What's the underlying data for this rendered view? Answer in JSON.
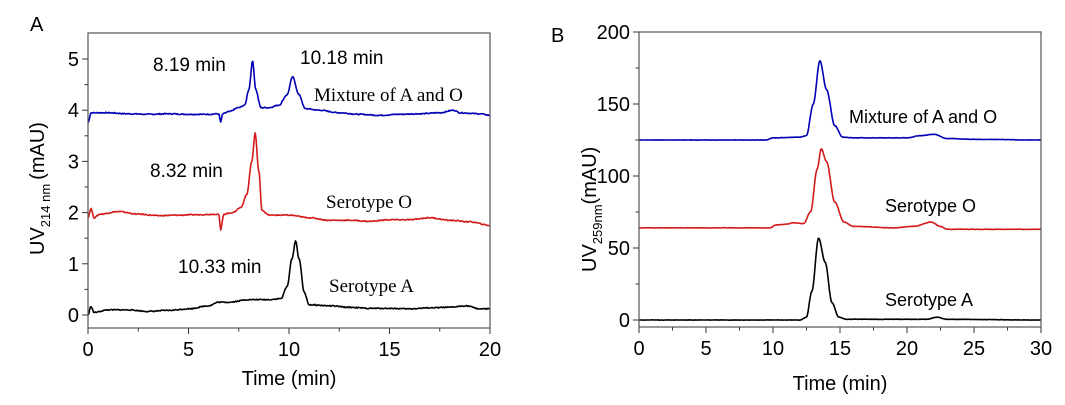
{
  "chart_data": [
    {
      "panel": "A",
      "type": "line",
      "title": "",
      "xlabel": "Time (min)",
      "ylabel_main": "UV",
      "ylabel_sub": "214 nm",
      "ylabel_unit": "(mAU)",
      "xlim": [
        0,
        20
      ],
      "ylim": [
        -0.25,
        5.5
      ],
      "xticks": [
        0,
        5,
        10,
        15,
        20
      ],
      "yticks": [
        0,
        1,
        2,
        3,
        4,
        5
      ],
      "grid": false,
      "series": [
        {
          "name": "Mixture of A and O",
          "color": "#0000b4",
          "baseline": 3.93,
          "points": [
            [
              0,
              3.75
            ],
            [
              0.15,
              3.95
            ],
            [
              1,
              3.95
            ],
            [
              2,
              3.93
            ],
            [
              3,
              3.92
            ],
            [
              4,
              3.93
            ],
            [
              5,
              3.92
            ],
            [
              6,
              3.92
            ],
            [
              6.5,
              3.93
            ],
            [
              6.6,
              3.77
            ],
            [
              6.7,
              3.93
            ],
            [
              7,
              3.97
            ],
            [
              7.5,
              4.05
            ],
            [
              7.8,
              4.1
            ],
            [
              8.0,
              4.4
            ],
            [
              8.19,
              4.96
            ],
            [
              8.35,
              4.4
            ],
            [
              8.6,
              4.05
            ],
            [
              9,
              4.05
            ],
            [
              9.5,
              4.1
            ],
            [
              9.9,
              4.3
            ],
            [
              10.18,
              4.65
            ],
            [
              10.5,
              4.3
            ],
            [
              10.8,
              4.03
            ],
            [
              11.5,
              4.0
            ],
            [
              12.5,
              3.95
            ],
            [
              13.5,
              3.92
            ],
            [
              14.5,
              3.9
            ],
            [
              15.5,
              3.92
            ],
            [
              16.5,
              3.93
            ],
            [
              17.5,
              3.95
            ],
            [
              18.2,
              4.0
            ],
            [
              18.5,
              3.95
            ],
            [
              19.5,
              3.93
            ],
            [
              20,
              3.9
            ]
          ]
        },
        {
          "name": "Serotype O",
          "color": "#d41a1a",
          "baseline": 1.95,
          "points": [
            [
              0,
              1.9
            ],
            [
              0.15,
              2.08
            ],
            [
              0.3,
              1.9
            ],
            [
              0.6,
              1.97
            ],
            [
              1.5,
              2.02
            ],
            [
              2.5,
              1.97
            ],
            [
              3.5,
              1.94
            ],
            [
              4.5,
              1.95
            ],
            [
              5.5,
              1.96
            ],
            [
              6.5,
              1.97
            ],
            [
              6.6,
              1.66
            ],
            [
              6.75,
              1.97
            ],
            [
              7.2,
              2.0
            ],
            [
              7.6,
              2.1
            ],
            [
              7.9,
              2.35
            ],
            [
              8.15,
              3.0
            ],
            [
              8.32,
              3.55
            ],
            [
              8.5,
              2.8
            ],
            [
              8.65,
              2.05
            ],
            [
              9,
              1.95
            ],
            [
              10,
              1.95
            ],
            [
              11,
              1.9
            ],
            [
              12,
              1.85
            ],
            [
              13,
              1.85
            ],
            [
              14,
              1.83
            ],
            [
              15,
              1.86
            ],
            [
              16,
              1.86
            ],
            [
              17,
              1.9
            ],
            [
              18,
              1.85
            ],
            [
              19,
              1.82
            ],
            [
              20,
              1.75
            ]
          ]
        },
        {
          "name": "Serotype A",
          "color": "#000000",
          "baseline": 0.1,
          "points": [
            [
              0,
              0
            ],
            [
              0.15,
              0.17
            ],
            [
              0.3,
              0.05
            ],
            [
              1,
              0.1
            ],
            [
              2,
              0.1
            ],
            [
              3,
              0.07
            ],
            [
              4,
              0.09
            ],
            [
              5,
              0.12
            ],
            [
              6,
              0.18
            ],
            [
              6.5,
              0.25
            ],
            [
              7,
              0.25
            ],
            [
              8,
              0.3
            ],
            [
              9,
              0.3
            ],
            [
              9.6,
              0.32
            ],
            [
              9.9,
              0.55
            ],
            [
              10.15,
              1.1
            ],
            [
              10.33,
              1.45
            ],
            [
              10.5,
              1.1
            ],
            [
              10.75,
              0.45
            ],
            [
              11,
              0.2
            ],
            [
              12,
              0.18
            ],
            [
              13,
              0.15
            ],
            [
              14,
              0.13
            ],
            [
              15,
              0.13
            ],
            [
              16,
              0.12
            ],
            [
              17,
              0.14
            ],
            [
              18,
              0.15
            ],
            [
              18.8,
              0.18
            ],
            [
              19.5,
              0.12
            ],
            [
              20,
              0.12
            ]
          ]
        }
      ],
      "annotations": [
        {
          "text": "8.19 min",
          "x": 8.19,
          "y": 4.96
        },
        {
          "text": "10.18 min",
          "x": 10.18,
          "y": 4.65
        },
        {
          "text": "Mixture of A and O",
          "x": 15.5,
          "y": 4.4
        },
        {
          "text": "8.32 min",
          "x": 8.32,
          "y": 3.55
        },
        {
          "text": "Serotype O",
          "x": 16,
          "y": 2.3
        },
        {
          "text": "10.33 min",
          "x": 10.33,
          "y": 1.45
        },
        {
          "text": "Serotype A",
          "x": 16,
          "y": 0.5
        }
      ]
    },
    {
      "panel": "B",
      "type": "line",
      "title": "",
      "xlabel": "Time (min)",
      "ylabel_main": "UV",
      "ylabel_sub": "259nm",
      "ylabel_unit": "(mAU)",
      "xlim": [
        0,
        30
      ],
      "ylim": [
        -5,
        200
      ],
      "xticks": [
        0,
        5,
        10,
        15,
        20,
        25,
        30
      ],
      "yticks": [
        0,
        50,
        100,
        150,
        200
      ],
      "grid": false,
      "series": [
        {
          "name": "Mixture of A and O",
          "color": "#0000b4",
          "points": [
            [
              0,
              125
            ],
            [
              9.5,
              125
            ],
            [
              10,
              126.5
            ],
            [
              12,
              127
            ],
            [
              12.5,
              128
            ],
            [
              13,
              150
            ],
            [
              13.5,
              180
            ],
            [
              14,
              160
            ],
            [
              14.6,
              135
            ],
            [
              15.2,
              127
            ],
            [
              16,
              126.5
            ],
            [
              20,
              126.5
            ],
            [
              21,
              128
            ],
            [
              22,
              129
            ],
            [
              23,
              126
            ],
            [
              25,
              125.5
            ],
            [
              30,
              125
            ]
          ]
        },
        {
          "name": "Serotype O",
          "color": "#d41a1a",
          "points": [
            [
              0,
              64
            ],
            [
              9.8,
              64
            ],
            [
              10.2,
              66
            ],
            [
              11,
              66.5
            ],
            [
              11.5,
              67.5
            ],
            [
              12.3,
              67
            ],
            [
              12.8,
              75
            ],
            [
              13.3,
              105
            ],
            [
              13.6,
              119
            ],
            [
              14,
              110
            ],
            [
              14.6,
              82
            ],
            [
              15.3,
              68
            ],
            [
              16,
              65
            ],
            [
              19,
              64
            ],
            [
              20.5,
              65
            ],
            [
              21.8,
              68
            ],
            [
              22.5,
              65
            ],
            [
              23,
              63
            ],
            [
              30,
              63
            ]
          ]
        },
        {
          "name": "Serotype A",
          "color": "#000000",
          "points": [
            [
              0,
              0
            ],
            [
              12,
              0
            ],
            [
              12.5,
              2
            ],
            [
              12.9,
              20
            ],
            [
              13.4,
              57
            ],
            [
              13.9,
              40
            ],
            [
              14.4,
              12
            ],
            [
              14.9,
              2
            ],
            [
              15.5,
              0.5
            ],
            [
              21.5,
              0.5
            ],
            [
              22.2,
              2
            ],
            [
              23,
              0.5
            ],
            [
              30,
              0
            ]
          ]
        }
      ],
      "annotations": [
        {
          "text": "Mixture of A and O",
          "x": 22.2,
          "y": 140
        },
        {
          "text": "Serotype O",
          "x": 22.2,
          "y": 79
        },
        {
          "text": "Serotype A",
          "x": 22.2,
          "y": 13
        }
      ]
    }
  ]
}
